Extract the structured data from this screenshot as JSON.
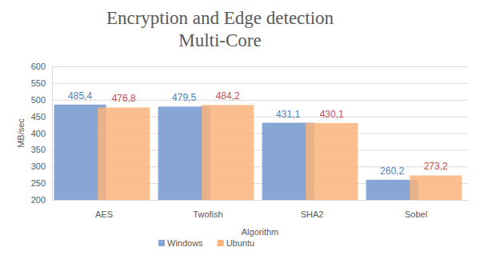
{
  "chart_data": {
    "type": "bar",
    "title": "Encryption and Edge detection\nMulti-Core",
    "x_label": "Algorithm",
    "y_label": "MB/sec",
    "categories": [
      "AES",
      "Twofish",
      "SHA2",
      "Sobel"
    ],
    "series": [
      {
        "name": "Windows",
        "color": "#87a6d5",
        "values": [
          485.4,
          479.5,
          431.1,
          260.2
        ],
        "value_labels": [
          "485,4",
          "479,5",
          "431,1",
          "260,2"
        ]
      },
      {
        "name": "Ubuntu",
        "color": "#f9b37b",
        "values": [
          476.8,
          484.2,
          430.1,
          273.2
        ],
        "value_labels": [
          "476,8",
          "484,2",
          "430,1",
          "273,2"
        ]
      }
    ],
    "ylim": [
      200,
      600
    ],
    "yticks": [
      200,
      250,
      300,
      350,
      400,
      450,
      500,
      550,
      600
    ],
    "grid": true,
    "legend": "bottom",
    "data_labels": true
  }
}
